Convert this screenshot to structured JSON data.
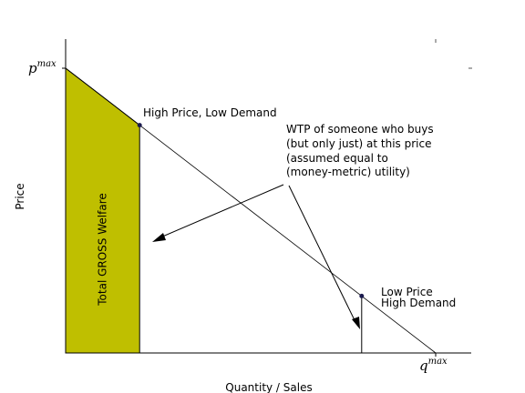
{
  "chart_data": {
    "type": "line",
    "xlabel": "Quantity / Sales",
    "ylabel": "Price",
    "xlim": [
      0,
      1
    ],
    "ylim": [
      0,
      1.1
    ],
    "demand_curve": {
      "x": [
        0,
        1
      ],
      "y": [
        1,
        0
      ]
    },
    "points": [
      {
        "name": "high-price-point",
        "x": 0.2,
        "y": 0.8
      },
      {
        "name": "low-price-point",
        "x": 0.8,
        "y": 0.2
      }
    ],
    "shaded_region": {
      "x0": 0,
      "x1": 0.2,
      "label": "Total GROSS Welfare",
      "color": "#BFBF00"
    },
    "annotations": {
      "high": "High Price, Low Demand",
      "wtp_lines": [
        "WTP of someone who buys",
        "(but only just) at this price",
        "(assumed equal to",
        "(money-metric) utility)"
      ],
      "low_lines": [
        "Low Price",
        "High Demand"
      ]
    },
    "axis_symbols": {
      "p_base": "p",
      "p_sup": "max",
      "q_base": "q",
      "q_sup": "max"
    }
  }
}
